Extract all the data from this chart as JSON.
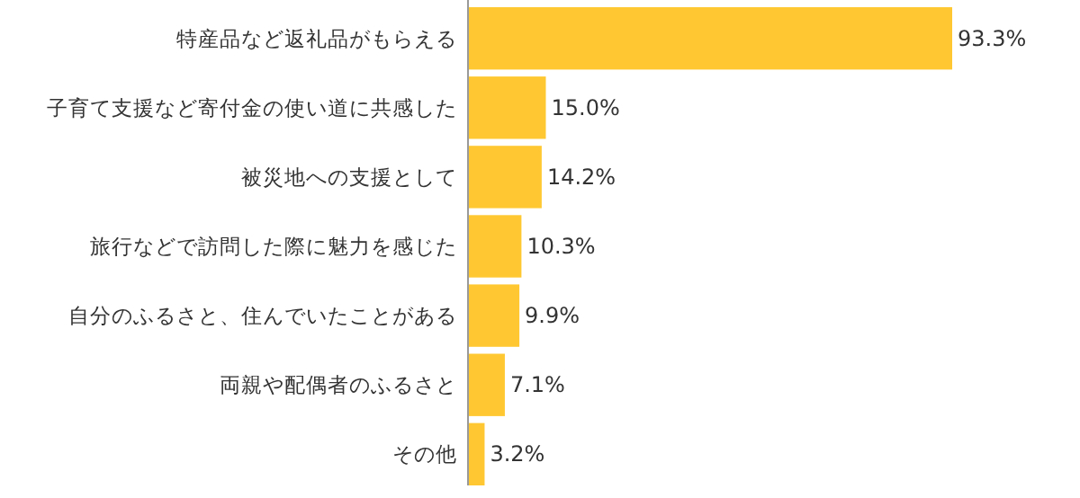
{
  "chart_data": {
    "type": "bar",
    "orientation": "horizontal",
    "categories": [
      "特産品など返礼品がもらえる",
      "子育て支援など寄付金の使い道に共感した",
      "被災地への支援として",
      "旅行などで訪問した際に魅力を感じた",
      "自分のふるさと、住んでいたことがある",
      "両親や配偶者のふるさと",
      "その他"
    ],
    "values": [
      93.3,
      15.0,
      14.2,
      10.3,
      9.9,
      7.1,
      3.2
    ],
    "value_labels": [
      "93.3%",
      "15.0%",
      "14.2%",
      "10.3%",
      "9.9%",
      "7.1%",
      "3.2%"
    ],
    "color": "#ffc832"
  }
}
